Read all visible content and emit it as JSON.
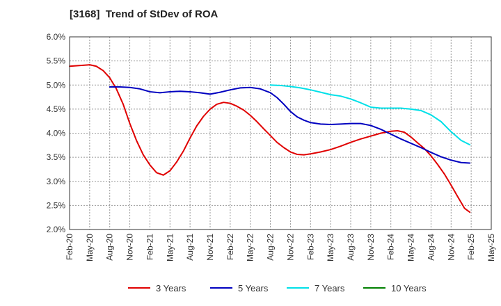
{
  "chart_data": {
    "type": "line",
    "title": "[3168]  Trend of StDev of ROA",
    "xlabel": "",
    "ylabel": "",
    "ylim": [
      2.0,
      6.0
    ],
    "yticks": [
      "2.0%",
      "2.5%",
      "3.0%",
      "3.5%",
      "4.0%",
      "4.5%",
      "5.0%",
      "5.5%",
      "6.0%"
    ],
    "ytick_values": [
      2.0,
      2.5,
      3.0,
      3.5,
      4.0,
      4.5,
      5.0,
      5.5,
      6.0
    ],
    "x_categories": [
      "Feb-20",
      "May-20",
      "Aug-20",
      "Nov-20",
      "Feb-21",
      "May-21",
      "Aug-21",
      "Nov-21",
      "Feb-22",
      "May-22",
      "Aug-22",
      "Nov-22",
      "Feb-23",
      "May-23",
      "Aug-23",
      "Nov-23",
      "Feb-24",
      "May-24",
      "Aug-24",
      "Nov-24",
      "Feb-25",
      "May-25"
    ],
    "grid": true,
    "legend_position": "bottom",
    "series": [
      {
        "name": "3 Years",
        "color": "#e00000",
        "points": [
          [
            0,
            5.39
          ],
          [
            1,
            5.42
          ],
          [
            1.33,
            5.39
          ],
          [
            1.67,
            5.3
          ],
          [
            2,
            5.15
          ],
          [
            2.33,
            4.92
          ],
          [
            2.67,
            4.6
          ],
          [
            3,
            4.2
          ],
          [
            3.33,
            3.85
          ],
          [
            3.67,
            3.55
          ],
          [
            4,
            3.34
          ],
          [
            4.33,
            3.18
          ],
          [
            4.67,
            3.13
          ],
          [
            5,
            3.22
          ],
          [
            5.33,
            3.4
          ],
          [
            5.67,
            3.63
          ],
          [
            6,
            3.9
          ],
          [
            6.33,
            4.15
          ],
          [
            6.67,
            4.35
          ],
          [
            7,
            4.5
          ],
          [
            7.33,
            4.6
          ],
          [
            7.67,
            4.64
          ],
          [
            8,
            4.62
          ],
          [
            8.33,
            4.56
          ],
          [
            8.67,
            4.48
          ],
          [
            9,
            4.37
          ],
          [
            9.33,
            4.24
          ],
          [
            9.67,
            4.09
          ],
          [
            10,
            3.95
          ],
          [
            10.33,
            3.81
          ],
          [
            10.67,
            3.7
          ],
          [
            11,
            3.61
          ],
          [
            11.33,
            3.56
          ],
          [
            11.67,
            3.55
          ],
          [
            12,
            3.57
          ],
          [
            12.5,
            3.61
          ],
          [
            13,
            3.66
          ],
          [
            13.5,
            3.73
          ],
          [
            14,
            3.81
          ],
          [
            14.5,
            3.88
          ],
          [
            15,
            3.94
          ],
          [
            15.5,
            4.0
          ],
          [
            16,
            4.04
          ],
          [
            16.33,
            4.05
          ],
          [
            16.67,
            4.02
          ],
          [
            17,
            3.92
          ],
          [
            17.33,
            3.8
          ],
          [
            17.67,
            3.68
          ],
          [
            18,
            3.53
          ],
          [
            18.33,
            3.35
          ],
          [
            18.67,
            3.15
          ],
          [
            19,
            2.92
          ],
          [
            19.33,
            2.68
          ],
          [
            19.67,
            2.44
          ],
          [
            19.93,
            2.36
          ]
        ]
      },
      {
        "name": "5 Years",
        "color": "#0000c0",
        "points": [
          [
            2,
            4.96
          ],
          [
            2.5,
            4.96
          ],
          [
            3,
            4.95
          ],
          [
            3.5,
            4.92
          ],
          [
            4,
            4.86
          ],
          [
            4.5,
            4.84
          ],
          [
            5,
            4.86
          ],
          [
            5.5,
            4.87
          ],
          [
            6,
            4.86
          ],
          [
            6.5,
            4.84
          ],
          [
            7,
            4.81
          ],
          [
            7.5,
            4.85
          ],
          [
            8,
            4.9
          ],
          [
            8.5,
            4.94
          ],
          [
            9,
            4.95
          ],
          [
            9.5,
            4.92
          ],
          [
            10,
            4.84
          ],
          [
            10.33,
            4.74
          ],
          [
            10.67,
            4.6
          ],
          [
            11,
            4.45
          ],
          [
            11.33,
            4.34
          ],
          [
            11.67,
            4.27
          ],
          [
            12,
            4.22
          ],
          [
            12.5,
            4.19
          ],
          [
            13,
            4.18
          ],
          [
            13.5,
            4.19
          ],
          [
            14,
            4.2
          ],
          [
            14.5,
            4.2
          ],
          [
            15,
            4.16
          ],
          [
            15.5,
            4.08
          ],
          [
            16,
            3.98
          ],
          [
            16.5,
            3.88
          ],
          [
            17,
            3.79
          ],
          [
            17.5,
            3.7
          ],
          [
            18,
            3.6
          ],
          [
            18.5,
            3.51
          ],
          [
            19,
            3.44
          ],
          [
            19.5,
            3.39
          ],
          [
            19.93,
            3.38
          ]
        ]
      },
      {
        "name": "7 Years",
        "color": "#00e0e8",
        "points": [
          [
            10,
            5.0
          ],
          [
            10.5,
            4.99
          ],
          [
            11,
            4.97
          ],
          [
            11.5,
            4.94
          ],
          [
            12,
            4.9
          ],
          [
            12.5,
            4.85
          ],
          [
            13,
            4.8
          ],
          [
            13.5,
            4.77
          ],
          [
            14,
            4.71
          ],
          [
            14.5,
            4.63
          ],
          [
            15,
            4.54
          ],
          [
            15.5,
            4.52
          ],
          [
            16,
            4.52
          ],
          [
            16.5,
            4.52
          ],
          [
            17,
            4.5
          ],
          [
            17.5,
            4.47
          ],
          [
            18,
            4.38
          ],
          [
            18.5,
            4.24
          ],
          [
            19,
            4.03
          ],
          [
            19.5,
            3.85
          ],
          [
            19.93,
            3.76
          ]
        ]
      },
      {
        "name": "10 Years",
        "color": "#008000",
        "points": []
      }
    ]
  }
}
